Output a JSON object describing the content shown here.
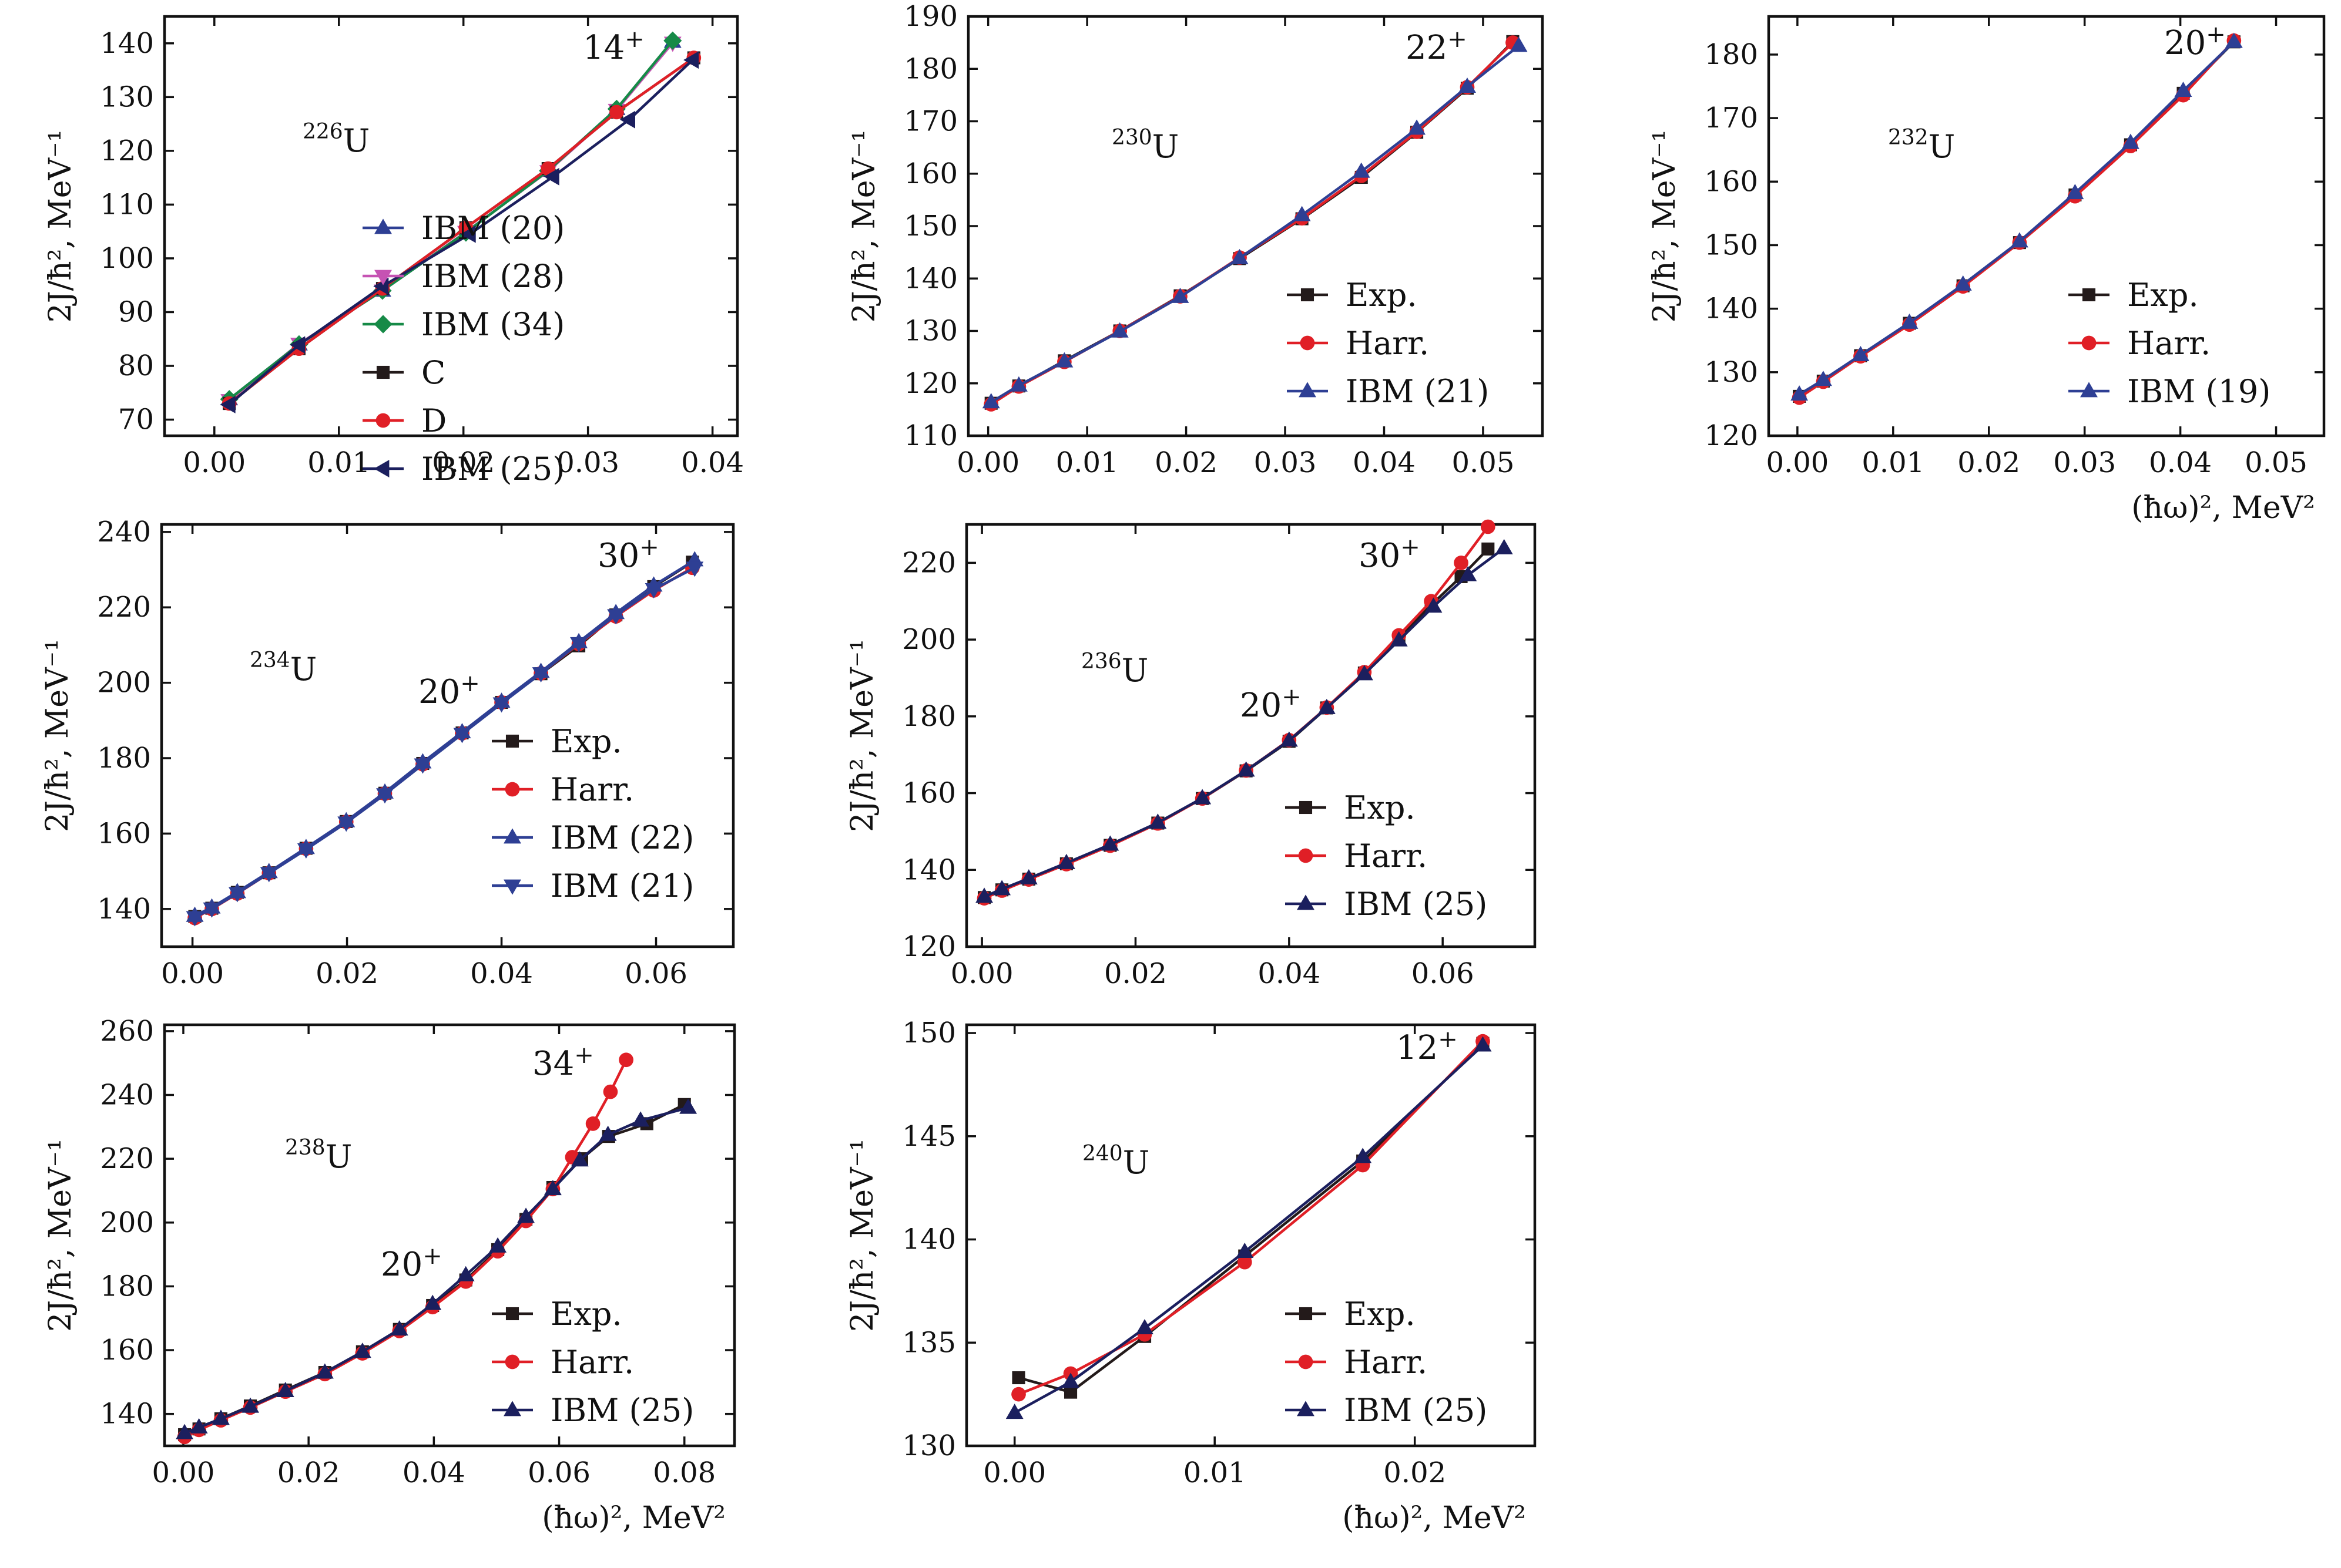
{
  "figure": {
    "xlabel": "(ħω)², MeV²",
    "ylabel": "2J/ħ², MeV⁻¹"
  },
  "colors": {
    "Exp.": "#231a1a",
    "C": "#231a1a",
    "Harr.": "#e01f26",
    "D": "#e01f26",
    "IBM": "#2e3f94",
    "IBM (20)": "#2e3f94",
    "IBM (28)": "#c653b3",
    "IBM (34)": "#168a47",
    "IBM (25)": "#1b1f5e"
  },
  "chart_data": [
    {
      "type": "line",
      "nucleus": {
        "mass": "226",
        "symbol": "U"
      },
      "annotations": [
        {
          "spin": "14",
          "parity": "+"
        }
      ],
      "xlabel": "",
      "ylabel": "2J/ħ², MeV⁻¹",
      "xlim": [
        -0.004,
        0.042
      ],
      "ylim": [
        67,
        145
      ],
      "xticks": [
        "0.00",
        "0.01",
        "0.02",
        "0.03",
        "0.04"
      ],
      "yticks": [
        "70",
        "80",
        "90",
        "100",
        "110",
        "120",
        "130",
        "140"
      ],
      "legend": "bottom-right",
      "series": [
        {
          "name": "IBM (20)",
          "marker": "triangle-up",
          "x": [
            0.0012,
            0.0068,
            0.0135,
            0.0202,
            0.0268,
            0.0323,
            0.0368
          ],
          "y": [
            73.8,
            84.0,
            94.0,
            104.8,
            116.3,
            127.8,
            140.3
          ]
        },
        {
          "name": "IBM (28)",
          "marker": "triangle-down",
          "x": [
            0.0012,
            0.0068,
            0.0135,
            0.0202,
            0.0268,
            0.0323,
            0.0368
          ],
          "y": [
            73.6,
            84.1,
            94.0,
            104.9,
            116.2,
            127.6,
            140.1
          ]
        },
        {
          "name": "IBM (34)",
          "marker": "diamond",
          "x": [
            0.0012,
            0.0068,
            0.0135,
            0.0202,
            0.0268,
            0.0323,
            0.0368
          ],
          "y": [
            73.8,
            84.0,
            94.0,
            104.8,
            116.3,
            127.8,
            140.5
          ]
        },
        {
          "name": "C",
          "marker": "square",
          "x": [
            0.0012,
            0.0068,
            0.0135,
            0.0202,
            0.0268,
            0.0323,
            0.0385
          ],
          "y": [
            73.0,
            83.2,
            94.4,
            105.7,
            116.7,
            127.2,
            137.3
          ]
        },
        {
          "name": "D",
          "marker": "circle",
          "x": [
            0.0012,
            0.0068,
            0.0135,
            0.0202,
            0.0268,
            0.0323,
            0.0385
          ],
          "y": [
            73.0,
            83.2,
            94.4,
            105.7,
            116.7,
            127.2,
            137.3
          ]
        },
        {
          "name": "IBM (25)",
          "marker": "triangle-left",
          "x": [
            0.0012,
            0.0068,
            0.0135,
            0.0205,
            0.0272,
            0.0333,
            0.0384
          ],
          "y": [
            72.8,
            83.9,
            94.8,
            104.5,
            115.2,
            125.8,
            136.9
          ]
        }
      ]
    },
    {
      "type": "line",
      "nucleus": {
        "mass": "230",
        "symbol": "U"
      },
      "annotations": [
        {
          "spin": "22",
          "parity": "+"
        }
      ],
      "xlabel": "",
      "ylabel": "2J/ħ², MeV⁻¹",
      "xlim": [
        -0.002,
        0.056
      ],
      "ylim": [
        110,
        190
      ],
      "xticks": [
        "0.00",
        "0.01",
        "0.02",
        "0.03",
        "0.04",
        "0.05"
      ],
      "yticks": [
        "110",
        "120",
        "130",
        "140",
        "150",
        "160",
        "170",
        "180",
        "190"
      ],
      "legend": "bottom-right",
      "series": [
        {
          "name": "Exp.",
          "marker": "square",
          "x": [
            0.0003,
            0.0031,
            0.0077,
            0.0133,
            0.0194,
            0.0254,
            0.0317,
            0.0377,
            0.0433,
            0.0484,
            0.053
          ],
          "y": [
            116.2,
            119.5,
            124.3,
            130.0,
            136.7,
            143.8,
            151.4,
            159.3,
            167.9,
            176.3,
            185.2
          ]
        },
        {
          "name": "Harr.",
          "marker": "circle",
          "x": [
            0.0003,
            0.0031,
            0.0077,
            0.0133,
            0.0194,
            0.0254,
            0.0317,
            0.0377,
            0.0433,
            0.0484,
            0.053
          ],
          "y": [
            116.0,
            119.4,
            124.1,
            130.0,
            136.6,
            144.0,
            151.5,
            159.6,
            168.0,
            176.5,
            185.0
          ]
        },
        {
          "name": "IBM (21)",
          "marker": "triangle-up",
          "x": [
            0.0003,
            0.0031,
            0.0077,
            0.0133,
            0.0194,
            0.0254,
            0.0317,
            0.0377,
            0.0433,
            0.0484,
            0.0536
          ],
          "y": [
            116.4,
            119.6,
            124.2,
            129.9,
            136.5,
            143.9,
            152.1,
            160.4,
            168.6,
            176.6,
            184.4
          ]
        }
      ]
    },
    {
      "type": "line",
      "nucleus": {
        "mass": "232",
        "symbol": "U"
      },
      "annotations": [
        {
          "spin": "20",
          "parity": "+"
        }
      ],
      "xlabel": "(ħω)², MeV²",
      "ylabel": "2J/ħ², MeV⁻¹",
      "xlim": [
        -0.003,
        0.055
      ],
      "ylim": [
        120,
        186
      ],
      "xticks": [
        "0.00",
        "0.01",
        "0.02",
        "0.03",
        "0.04",
        "0.05"
      ],
      "yticks": [
        "120",
        "130",
        "140",
        "150",
        "160",
        "170",
        "180"
      ],
      "legend": "bottom-right",
      "series": [
        {
          "name": "Exp.",
          "marker": "square",
          "x": [
            0.0002,
            0.0027,
            0.0066,
            0.0117,
            0.0173,
            0.0232,
            0.029,
            0.0348,
            0.0403,
            0.0456
          ],
          "y": [
            126.2,
            128.6,
            132.6,
            137.7,
            143.6,
            150.4,
            157.9,
            165.8,
            173.9,
            182.0
          ]
        },
        {
          "name": "Harr.",
          "marker": "circle",
          "x": [
            0.0002,
            0.0027,
            0.0066,
            0.0117,
            0.0173,
            0.0232,
            0.029,
            0.0348,
            0.0403,
            0.0456
          ],
          "y": [
            126.0,
            128.5,
            132.5,
            137.5,
            143.5,
            150.4,
            157.7,
            165.6,
            173.6,
            182.2
          ]
        },
        {
          "name": "IBM (19)",
          "marker": "triangle-up",
          "x": [
            0.0002,
            0.0027,
            0.0066,
            0.0117,
            0.0173,
            0.0232,
            0.029,
            0.0348,
            0.0403,
            0.0456
          ],
          "y": [
            126.5,
            128.8,
            132.7,
            137.8,
            143.8,
            150.6,
            158.2,
            166.1,
            174.3,
            182.0
          ]
        }
      ]
    },
    {
      "type": "line",
      "nucleus": {
        "mass": "234",
        "symbol": "U"
      },
      "annotations": [
        {
          "spin": "20",
          "parity": "+"
        },
        {
          "spin": "30",
          "parity": "+"
        }
      ],
      "xlabel": "",
      "ylabel": "2J/ħ², MeV⁻¹",
      "xlim": [
        -0.004,
        0.07
      ],
      "ylim": [
        130,
        242
      ],
      "xticks": [
        "0.00",
        "0.02",
        "0.04",
        "0.06"
      ],
      "yticks": [
        "140",
        "160",
        "180",
        "200",
        "220",
        "240"
      ],
      "legend": "bottom-right",
      "series": [
        {
          "name": "Exp.",
          "marker": "square",
          "x": [
            0.0003,
            0.0025,
            0.0058,
            0.0099,
            0.0147,
            0.0199,
            0.0249,
            0.0298,
            0.0349,
            0.04,
            0.0451,
            0.05,
            0.0548,
            0.0597,
            0.0647
          ],
          "y": [
            138.0,
            140.2,
            144.4,
            149.6,
            156.1,
            163.2,
            170.7,
            178.6,
            186.7,
            194.8,
            202.4,
            209.8,
            218.0,
            225.5,
            232.0
          ]
        },
        {
          "name": "Harr.",
          "marker": "circle",
          "x": [
            0.0003,
            0.0025,
            0.0058,
            0.0099,
            0.0147,
            0.0199,
            0.0249,
            0.0298,
            0.0349,
            0.04,
            0.0451,
            0.05,
            0.0548,
            0.0597,
            0.0647
          ],
          "y": [
            137.6,
            140.0,
            144.1,
            149.5,
            156.0,
            163.1,
            170.6,
            178.4,
            186.6,
            194.8,
            202.5,
            210.3,
            217.6,
            224.5,
            230.5
          ]
        },
        {
          "name": "IBM (22)",
          "marker": "triangle-up",
          "x": [
            0.0003,
            0.0025,
            0.0058,
            0.0099,
            0.0147,
            0.0199,
            0.0249,
            0.0298,
            0.0349,
            0.04,
            0.0451,
            0.05,
            0.0548,
            0.0597,
            0.065
          ],
          "y": [
            138.2,
            140.4,
            144.5,
            149.8,
            156.2,
            163.3,
            170.9,
            178.9,
            186.9,
            195.0,
            202.9,
            210.8,
            218.5,
            225.8,
            232.5
          ]
        },
        {
          "name": "IBM (21)",
          "marker": "triangle-down",
          "x": [
            0.0003,
            0.0025,
            0.0058,
            0.0099,
            0.0147,
            0.0199,
            0.0249,
            0.0298,
            0.0349,
            0.04,
            0.0451,
            0.05,
            0.0548,
            0.0597,
            0.065
          ],
          "y": [
            137.8,
            140.1,
            144.2,
            149.5,
            155.8,
            162.9,
            170.4,
            178.3,
            186.4,
            194.5,
            202.5,
            210.5,
            217.9,
            224.8,
            230.5
          ]
        }
      ]
    },
    {
      "type": "line",
      "nucleus": {
        "mass": "236",
        "symbol": "U"
      },
      "annotations": [
        {
          "spin": "20",
          "parity": "+"
        },
        {
          "spin": "30",
          "parity": "+"
        }
      ],
      "xlabel": "",
      "ylabel": "2J/ħ², MeV⁻¹",
      "xlim": [
        -0.002,
        0.072
      ],
      "ylim": [
        120,
        230
      ],
      "xticks": [
        "0.00",
        "0.02",
        "0.04",
        "0.06"
      ],
      "yticks": [
        "120",
        "140",
        "160",
        "180",
        "200",
        "220"
      ],
      "legend": "bottom-right",
      "series": [
        {
          "name": "Exp.",
          "marker": "square",
          "x": [
            0.0003,
            0.0026,
            0.0061,
            0.011,
            0.0167,
            0.0229,
            0.0287,
            0.0344,
            0.04,
            0.0449,
            0.0498,
            0.0543,
            0.0585,
            0.0624,
            0.0659
          ],
          "y": [
            132.8,
            134.8,
            137.6,
            141.6,
            146.4,
            152.2,
            158.6,
            165.8,
            173.5,
            182.2,
            191.3,
            200.4,
            209.0,
            216.4,
            223.6
          ]
        },
        {
          "name": "Harr.",
          "marker": "circle",
          "x": [
            0.0003,
            0.0026,
            0.0061,
            0.011,
            0.0167,
            0.0229,
            0.0287,
            0.0344,
            0.04,
            0.0449,
            0.0498,
            0.0543,
            0.0585,
            0.0624,
            0.0659
          ],
          "y": [
            132.6,
            134.6,
            137.5,
            141.5,
            146.3,
            152.1,
            158.6,
            165.9,
            173.8,
            182.3,
            191.5,
            201.1,
            210.0,
            220.0,
            229.4
          ]
        },
        {
          "name": "IBM (25)",
          "marker": "triangle-up",
          "x": [
            0.0003,
            0.0026,
            0.0061,
            0.011,
            0.0167,
            0.0229,
            0.0287,
            0.0344,
            0.04,
            0.0449,
            0.0498,
            0.0543,
            0.0588,
            0.0633,
            0.068
          ],
          "y": [
            133.0,
            135.0,
            137.8,
            141.8,
            146.6,
            152.3,
            158.7,
            165.9,
            173.7,
            182.2,
            191.0,
            199.8,
            208.6,
            216.8,
            223.8
          ]
        }
      ]
    },
    {
      "type": "line",
      "nucleus": {
        "mass": "238",
        "symbol": "U"
      },
      "annotations": [
        {
          "spin": "20",
          "parity": "+"
        },
        {
          "spin": "34",
          "parity": "+"
        }
      ],
      "xlabel": "(ħω)², MeV²",
      "ylabel": "2J/ħ², MeV⁻¹",
      "xlim": [
        -0.003,
        0.088
      ],
      "ylim": [
        130,
        262
      ],
      "xticks": [
        "0.00",
        "0.02",
        "0.04",
        "0.06",
        "0.08"
      ],
      "yticks": [
        "140",
        "160",
        "180",
        "200",
        "220",
        "240",
        "260"
      ],
      "legend": "bottom-right",
      "series": [
        {
          "name": "Exp.",
          "marker": "square",
          "x": [
            0.0002,
            0.0025,
            0.006,
            0.0107,
            0.0163,
            0.0226,
            0.0286,
            0.0345,
            0.0398,
            0.0451,
            0.0502,
            0.0547,
            0.059,
            0.0636,
            0.0679,
            0.074,
            0.08
          ],
          "y": [
            133.5,
            135.3,
            138.5,
            142.5,
            147.5,
            153.0,
            159.5,
            166.5,
            174.0,
            182.0,
            191.5,
            201.0,
            211.0,
            220.0,
            227.0,
            231.0,
            237.0
          ]
        },
        {
          "name": "Harr.",
          "marker": "circle",
          "x": [
            0.0002,
            0.0025,
            0.006,
            0.0107,
            0.0163,
            0.0226,
            0.0286,
            0.0345,
            0.0398,
            0.0451,
            0.0502,
            0.0547,
            0.059,
            0.0621,
            0.0654,
            0.0682,
            0.0707
          ],
          "y": [
            132.8,
            135.0,
            138.0,
            142.0,
            147.0,
            152.5,
            159.0,
            166.0,
            173.5,
            181.5,
            191.0,
            200.5,
            210.5,
            220.5,
            231.0,
            241.0,
            251.0
          ]
        },
        {
          "name": "IBM (25)",
          "marker": "triangle-up",
          "x": [
            0.0002,
            0.0025,
            0.006,
            0.0107,
            0.0163,
            0.0226,
            0.0286,
            0.0345,
            0.0398,
            0.0451,
            0.0502,
            0.0547,
            0.059,
            0.0633,
            0.0678,
            0.073,
            0.0806
          ],
          "y": [
            134.0,
            135.8,
            138.5,
            142.3,
            147.2,
            153.0,
            159.5,
            166.5,
            174.5,
            183.5,
            192.5,
            201.8,
            210.5,
            219.5,
            227.5,
            232.0,
            236.0
          ]
        }
      ]
    },
    {
      "type": "line",
      "nucleus": {
        "mass": "240",
        "symbol": "U"
      },
      "annotations": [
        {
          "spin": "12",
          "parity": "+"
        }
      ],
      "xlabel": "(ħω)², MeV²",
      "ylabel": "2J/ħ², MeV⁻¹",
      "xlim": [
        -0.0024,
        0.026
      ],
      "ylim": [
        130,
        150.4
      ],
      "xticks": [
        "0.00",
        "0.01",
        "0.02"
      ],
      "yticks": [
        "130",
        "135",
        "140",
        "145",
        "150"
      ],
      "legend": "bottom-right",
      "series": [
        {
          "name": "Exp.",
          "marker": "square",
          "x": [
            0.0002,
            0.0028,
            0.0065,
            0.0115,
            0.0174,
            0.0234
          ],
          "y": [
            133.3,
            132.6,
            135.3,
            139.2,
            143.8,
            149.5
          ]
        },
        {
          "name": "Harr.",
          "marker": "circle",
          "x": [
            0.0002,
            0.0028,
            0.0065,
            0.0115,
            0.0174,
            0.0234
          ],
          "y": [
            132.5,
            133.5,
            135.4,
            138.9,
            143.6,
            149.6
          ]
        },
        {
          "name": "IBM (25)",
          "marker": "triangle-up",
          "x": [
            0.0,
            0.0028,
            0.0065,
            0.0115,
            0.0174,
            0.0234
          ],
          "y": [
            131.6,
            133.1,
            135.7,
            139.4,
            144.0,
            149.4
          ]
        }
      ]
    }
  ]
}
